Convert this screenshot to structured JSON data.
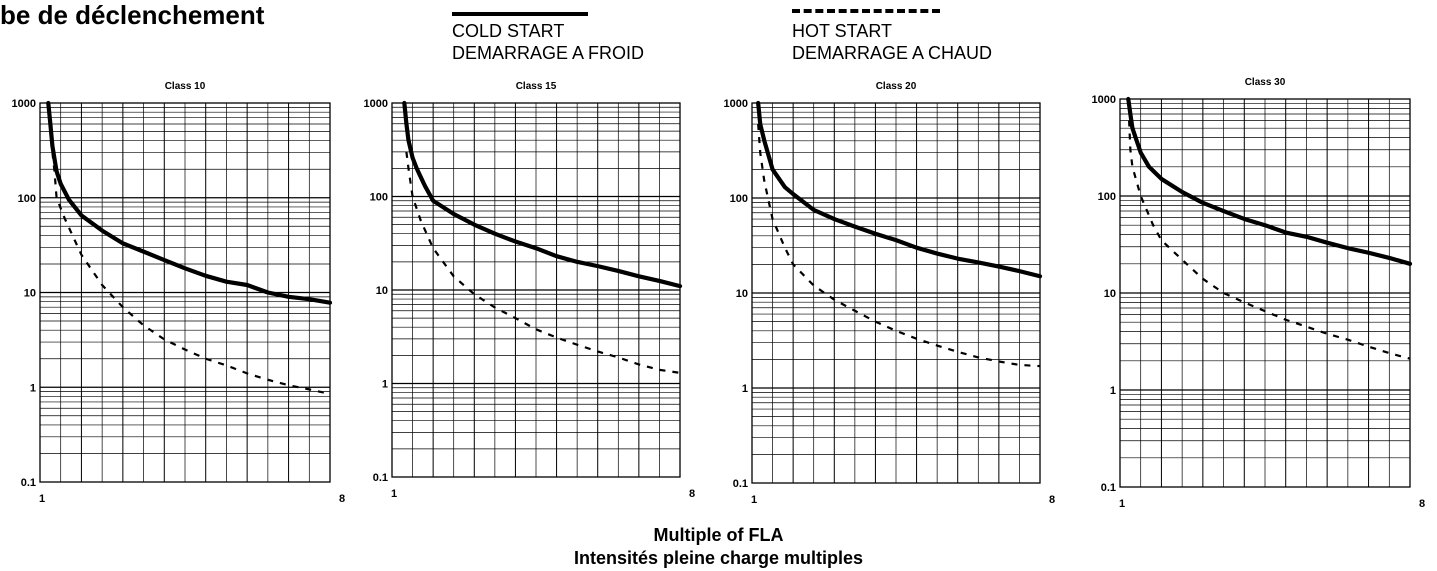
{
  "page_title": "be de déclenchement",
  "legend": {
    "cold_line1": "COLD START",
    "cold_line2": "DEMARRAGE A FROID",
    "hot_line1": "HOT START",
    "hot_line2": "DEMARRAGE A CHAUD"
  },
  "xlabel_line1": "Multiple of FLA",
  "xlabel_line2": "Intensités pleine charge multiples",
  "chart_data": [
    {
      "type": "line",
      "title": "Class 10",
      "x_scale": "linear",
      "y_scale": "log",
      "xlim": [
        1,
        8
      ],
      "ylim": [
        0.1,
        1000
      ],
      "y_tick_labels": [
        "1000",
        "100",
        "10",
        "1",
        "0.1"
      ],
      "x_tick_labels": [
        "1",
        "8"
      ],
      "grid": true,
      "series": [
        {
          "name": "COLD START",
          "style": "solid",
          "x": [
            1.2,
            1.25,
            1.3,
            1.4,
            1.5,
            1.7,
            2,
            2.5,
            3,
            3.5,
            4,
            4.5,
            5,
            5.5,
            6,
            6.5,
            7,
            7.5,
            8
          ],
          "y": [
            1000,
            600,
            350,
            190,
            140,
            95,
            65,
            45,
            33,
            27,
            22,
            18,
            15,
            13,
            12,
            10,
            9,
            8.5,
            7.8
          ]
        },
        {
          "name": "HOT START",
          "style": "dashed",
          "x": [
            1.3,
            1.35,
            1.4,
            1.6,
            2,
            2.5,
            3,
            3.5,
            4,
            4.5,
            5,
            5.5,
            6,
            6.5,
            7,
            7.5,
            8
          ],
          "y": [
            300,
            190,
            100,
            60,
            25,
            12,
            7,
            4.5,
            3.2,
            2.5,
            2,
            1.7,
            1.4,
            1.2,
            1.05,
            0.95,
            0.85
          ]
        }
      ]
    },
    {
      "type": "line",
      "title": "Class 15",
      "x_scale": "linear",
      "y_scale": "log",
      "xlim": [
        1,
        8
      ],
      "ylim": [
        0.1,
        1000
      ],
      "y_tick_labels": [
        "1000",
        "100",
        "10",
        "1",
        "0.1"
      ],
      "x_tick_labels": [
        "1",
        "8"
      ],
      "grid": true,
      "series": [
        {
          "name": "COLD START",
          "style": "solid",
          "x": [
            1.3,
            1.35,
            1.4,
            1.5,
            1.6,
            1.8,
            2,
            2.5,
            3,
            3.5,
            4,
            4.5,
            5,
            5.5,
            6,
            6.5,
            7,
            7.5,
            8
          ],
          "y": [
            1000,
            600,
            400,
            260,
            200,
            130,
            90,
            65,
            50,
            40,
            33,
            28,
            23,
            20,
            18,
            16,
            14,
            12.5,
            11
          ]
        },
        {
          "name": "HOT START",
          "style": "dashed",
          "x": [
            1.35,
            1.4,
            1.5,
            1.7,
            2,
            2.5,
            3,
            3.5,
            4,
            4.5,
            5,
            5.5,
            6,
            6.5,
            7,
            7.5,
            8
          ],
          "y": [
            300,
            200,
            100,
            55,
            28,
            14,
            9,
            6.5,
            5,
            3.8,
            3.1,
            2.6,
            2.2,
            1.9,
            1.6,
            1.4,
            1.3
          ]
        }
      ]
    },
    {
      "type": "line",
      "title": "Class 20",
      "x_scale": "linear",
      "y_scale": "log",
      "xlim": [
        1,
        8
      ],
      "ylim": [
        0.1,
        1000
      ],
      "y_tick_labels": [
        "1000",
        "100",
        "10",
        "1",
        "0.1"
      ],
      "x_tick_labels": [
        "1",
        "8"
      ],
      "grid": true,
      "series": [
        {
          "name": "COLD START",
          "style": "solid",
          "x": [
            1.15,
            1.2,
            1.3,
            1.5,
            1.8,
            2,
            2.5,
            3,
            3.5,
            4,
            4.5,
            5,
            5.5,
            6,
            6.5,
            7,
            7.5,
            8
          ],
          "y": [
            1000,
            600,
            400,
            200,
            130,
            110,
            75,
            60,
            50,
            42,
            36,
            30,
            26,
            23,
            21,
            19,
            17,
            15
          ]
        },
        {
          "name": "HOT START",
          "style": "dashed",
          "x": [
            1.15,
            1.2,
            1.3,
            1.5,
            1.8,
            2,
            2.5,
            3,
            3.5,
            4,
            4.5,
            5,
            5.5,
            6,
            6.5,
            7,
            7.5,
            8
          ],
          "y": [
            600,
            300,
            150,
            60,
            30,
            20,
            12,
            8.5,
            6.5,
            5,
            4,
            3.3,
            2.8,
            2.4,
            2.1,
            1.9,
            1.75,
            1.7
          ]
        }
      ]
    },
    {
      "type": "line",
      "title": "Class 30",
      "x_scale": "linear",
      "y_scale": "log",
      "xlim": [
        1,
        8
      ],
      "ylim": [
        0.1,
        1000
      ],
      "y_tick_labels": [
        "1000",
        "100",
        "10",
        "1",
        "0.1"
      ],
      "x_tick_labels": [
        "1",
        "8"
      ],
      "grid": true,
      "series": [
        {
          "name": "COLD START",
          "style": "solid",
          "x": [
            1.2,
            1.25,
            1.3,
            1.5,
            1.7,
            2,
            2.5,
            3,
            3.5,
            4,
            4.5,
            5,
            5.5,
            6,
            6.5,
            7,
            7.5,
            8
          ],
          "y": [
            1000,
            700,
            500,
            280,
            200,
            150,
            110,
            85,
            70,
            58,
            50,
            42,
            38,
            33,
            29,
            26,
            23,
            20
          ]
        },
        {
          "name": "HOT START",
          "style": "dashed",
          "x": [
            1.22,
            1.25,
            1.3,
            1.5,
            1.8,
            2,
            2.5,
            3,
            3.5,
            4,
            4.5,
            5,
            5.5,
            6,
            6.5,
            7,
            7.5,
            8
          ],
          "y": [
            600,
            300,
            200,
            100,
            50,
            35,
            22,
            14,
            10,
            8,
            6.5,
            5.3,
            4.5,
            3.8,
            3.3,
            2.8,
            2.4,
            2.1
          ]
        }
      ]
    }
  ]
}
